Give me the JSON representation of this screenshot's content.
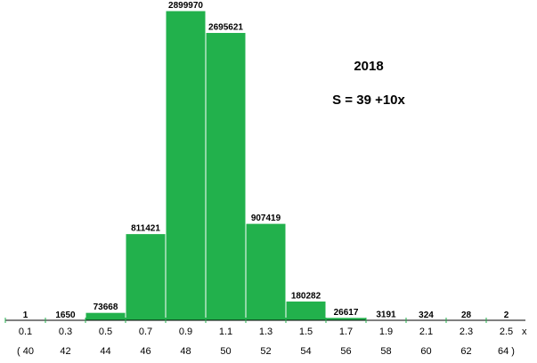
{
  "chart_data": {
    "type": "bar",
    "title": "2018",
    "annotation": "S = 39 +10x",
    "xlabel": "x",
    "ylabel": "",
    "categories": [
      "0.1",
      "0.3",
      "0.5",
      "0.7",
      "0.9",
      "1.1",
      "1.3",
      "1.5",
      "1.7",
      "1.9",
      "2.1",
      "2.3",
      "2.5"
    ],
    "values": [
      1,
      1650,
      73668,
      811421,
      2899970,
      2695621,
      907419,
      180282,
      26617,
      3191,
      324,
      28,
      2
    ],
    "value_labels": [
      "1",
      "1650",
      "73668",
      "811421",
      "2899970",
      "2695621",
      "907419",
      "180282",
      "26617",
      "3191",
      "324",
      "28",
      "2"
    ],
    "secondary_ticks": [
      "( 40",
      "42",
      "44",
      "46",
      "48",
      "50",
      "52",
      "54",
      "56",
      "58",
      "60",
      "62",
      "64 )"
    ],
    "ylim": [
      0,
      2899970
    ],
    "grid": false,
    "bar_color": "#22b14c"
  }
}
